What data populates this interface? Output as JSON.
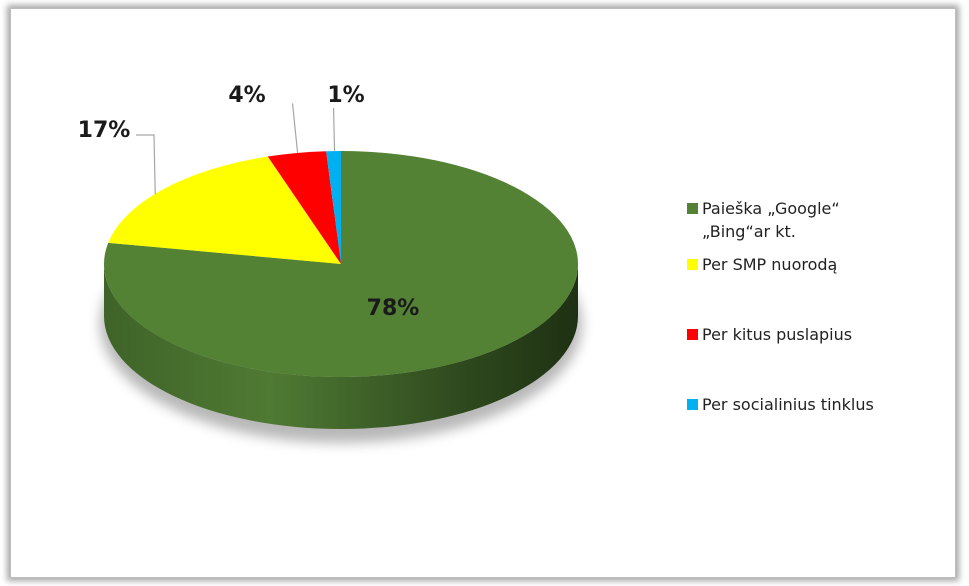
{
  "chart_data": {
    "type": "pie",
    "style": "3d",
    "categories": [
      "Paieška „Google“ „Bing“ar kt.",
      "Per SMP nuorodą",
      "Per kitus puslapius",
      "Per socialinius tinklus"
    ],
    "values": [
      78,
      17,
      4,
      1
    ],
    "data_labels": [
      "78%",
      "17%",
      "4%",
      "1%"
    ],
    "colors": [
      "#548235",
      "#ffff00",
      "#ff0000",
      "#00b0f0"
    ],
    "legend_position": "right"
  }
}
